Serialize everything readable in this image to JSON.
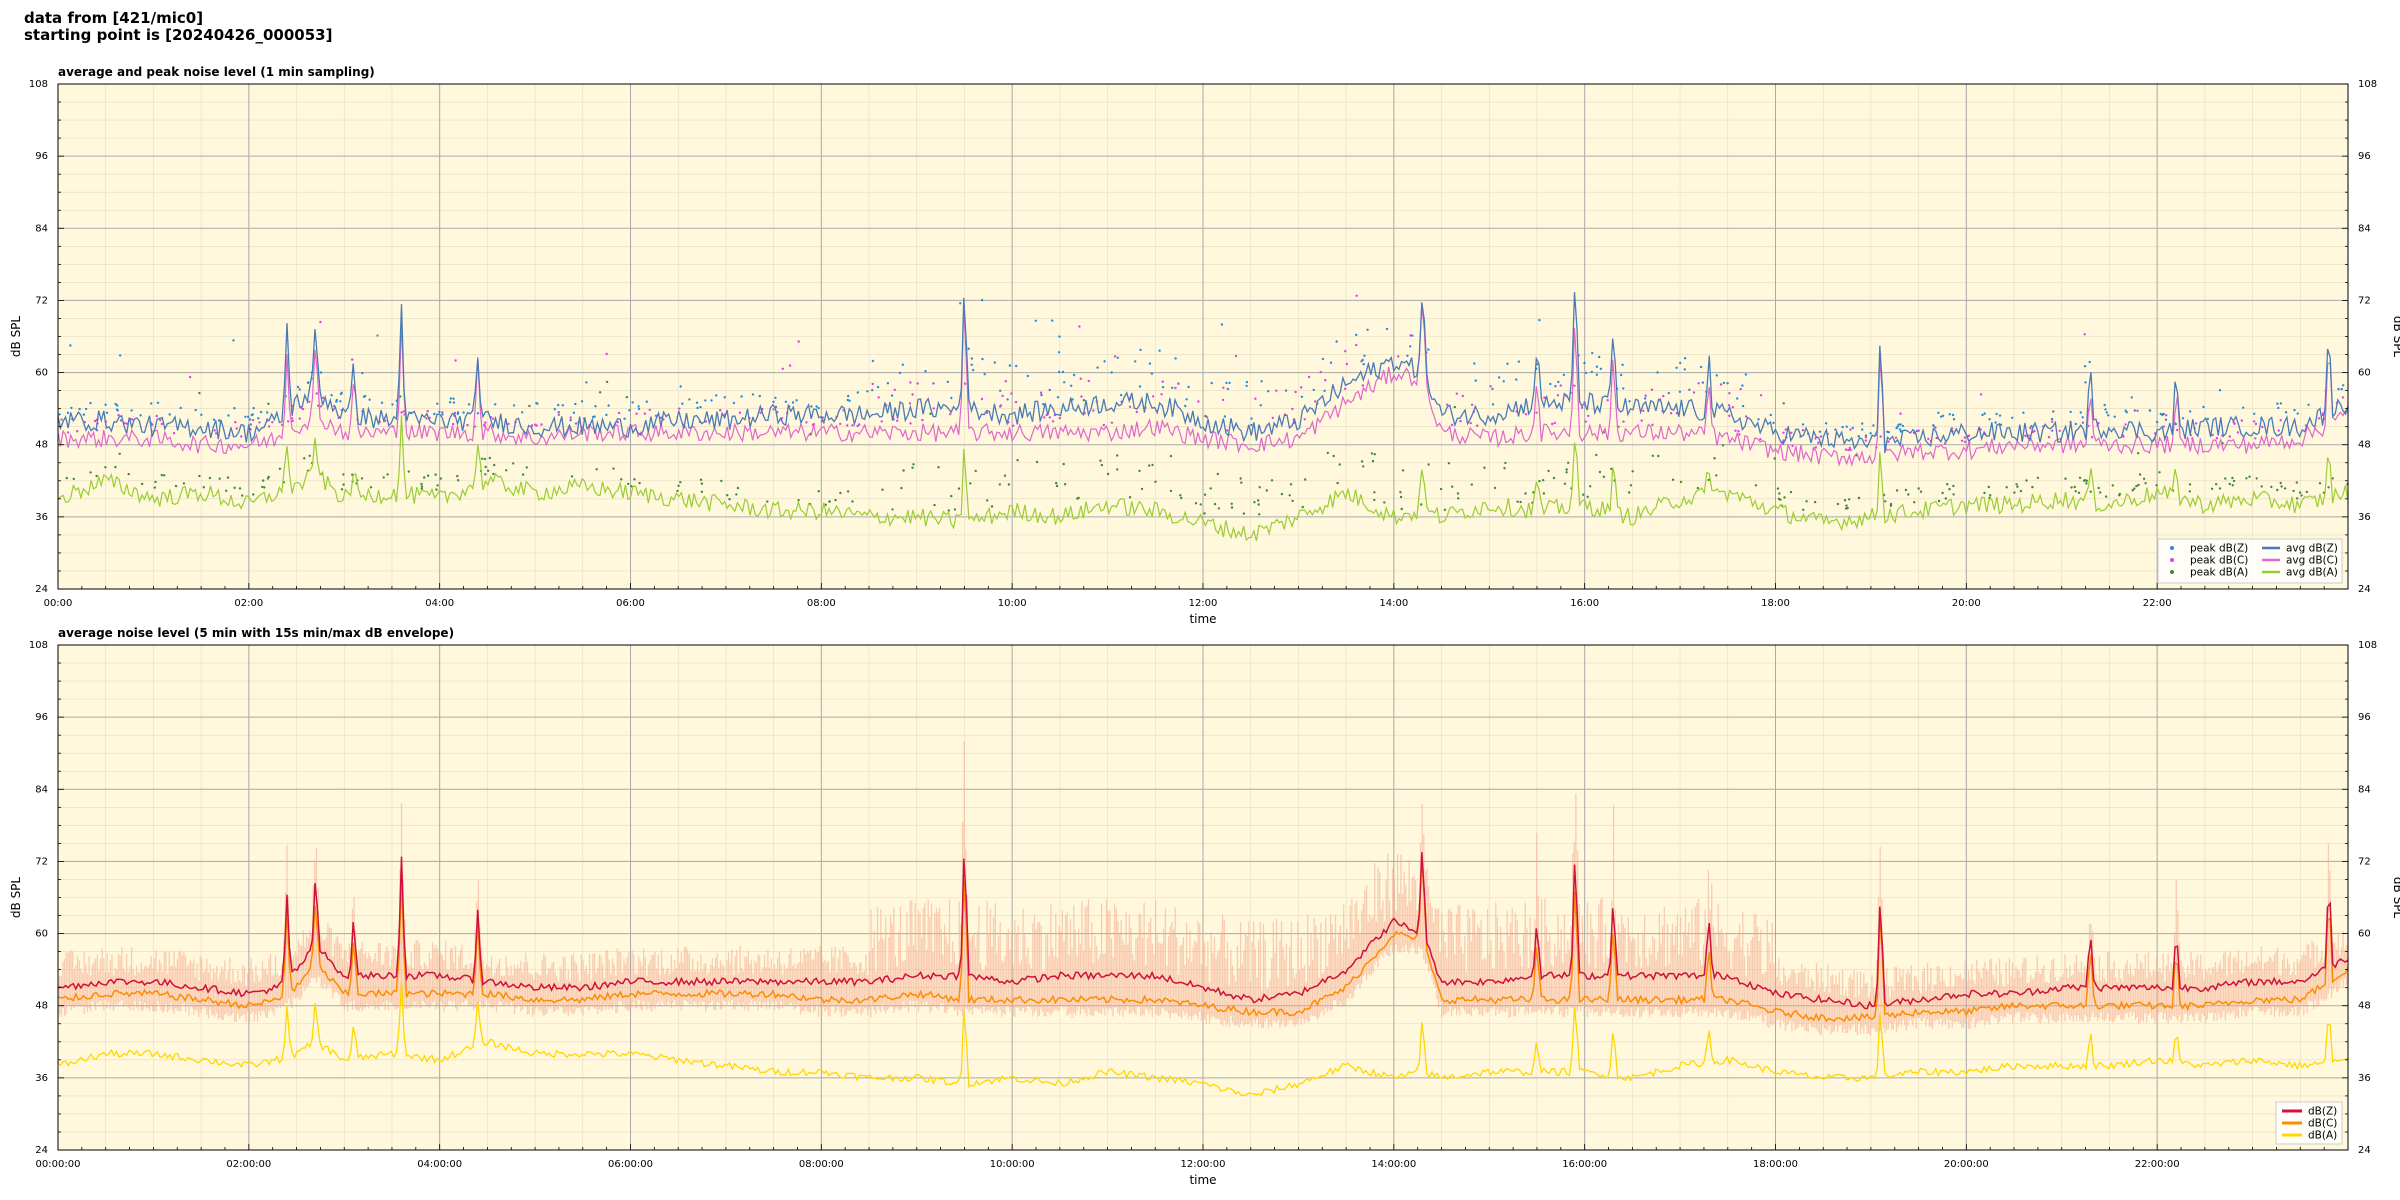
{
  "header": {
    "line1": "data from [421/mic0]",
    "line2": "starting point is [20240426_000053]"
  },
  "colors": {
    "plot_bg": "#fff8dc",
    "peak_z": "#1f8fdc",
    "peak_c": "#e040e0",
    "peak_a": "#3a8a3a",
    "avg_z": "#4a7ab5",
    "avg_c": "#e066cc",
    "avg_a": "#9acd32",
    "db_z": "#d0103a",
    "db_c": "#ff8c00",
    "db_a": "#ffd700",
    "envelope": "#f4a890"
  },
  "chart_data": [
    {
      "type": "line",
      "title": "average and peak noise level (1 min sampling)",
      "xlabel": "time",
      "ylabel": "dB SPL",
      "xlim": [
        0,
        24
      ],
      "ylim": [
        24,
        108
      ],
      "grid": true,
      "legend": "bottom-right",
      "xticks": [
        "00:00",
        "02:00",
        "04:00",
        "06:00",
        "08:00",
        "10:00",
        "12:00",
        "14:00",
        "16:00",
        "18:00",
        "20:00",
        "22:00"
      ],
      "yticks": [
        "24",
        "36",
        "48",
        "60",
        "72",
        "84",
        "96",
        "108"
      ],
      "legend_entries": [
        "peak dB(Z)",
        "peak dB(C)",
        "peak dB(A)",
        "avg dB(Z)",
        "avg dB(C)",
        "avg dB(A)"
      ],
      "series": [
        {
          "name": "avg dB(Z)",
          "x": [
            0,
            0.5,
            1,
            1.5,
            2,
            2.3,
            2.5,
            2.7,
            3,
            3.5,
            4,
            4.5,
            5,
            5.5,
            6,
            6.5,
            7,
            7.5,
            8,
            8.5,
            9,
            9.5,
            10,
            10.5,
            11,
            11.5,
            12,
            12.5,
            13,
            13.5,
            14,
            14.3,
            14.5,
            15,
            15.5,
            16,
            16.5,
            17,
            17.5,
            18,
            18.5,
            19,
            19.5,
            20,
            20.5,
            21,
            21.5,
            22,
            22.5,
            23,
            23.5,
            24
          ],
          "y": [
            52,
            52,
            51,
            51,
            50,
            52,
            55,
            57,
            53,
            52,
            52,
            52,
            51,
            51,
            51,
            52,
            52,
            53,
            53,
            53,
            54,
            54,
            53,
            54,
            55,
            55,
            52,
            50,
            52,
            58,
            62,
            60,
            53,
            53,
            55,
            55,
            54,
            54,
            53,
            50,
            49,
            48,
            49,
            50,
            50,
            50,
            51,
            50,
            51,
            51,
            51,
            55
          ]
        },
        {
          "name": "avg dB(C)",
          "x": [
            0,
            0.5,
            1,
            1.5,
            2,
            2.3,
            2.5,
            2.7,
            3,
            3.5,
            4,
            4.5,
            5,
            5.5,
            6,
            6.5,
            7,
            7.5,
            8,
            8.5,
            9,
            9.5,
            10,
            10.5,
            11,
            11.5,
            12,
            12.5,
            13,
            13.5,
            14,
            14.3,
            14.5,
            15,
            15.5,
            16,
            16.5,
            17,
            17.5,
            18,
            18.5,
            19,
            19.5,
            20,
            20.5,
            21,
            21.5,
            22,
            22.5,
            23,
            23.5,
            24
          ],
          "y": [
            49,
            49,
            49,
            48,
            48,
            49,
            51,
            53,
            50,
            50,
            50,
            50,
            49,
            50,
            50,
            50,
            50,
            50,
            50,
            50,
            50,
            50,
            50,
            50,
            50,
            51,
            49,
            48,
            49,
            55,
            60,
            59,
            50,
            49,
            50,
            50,
            50,
            50,
            49,
            47,
            46,
            46,
            47,
            47,
            48,
            48,
            48,
            48,
            48,
            48,
            49,
            53
          ]
        },
        {
          "name": "avg dB(A)",
          "x": [
            0,
            0.5,
            1,
            1.5,
            2,
            2.3,
            2.5,
            2.7,
            3,
            3.5,
            4,
            4.5,
            5,
            5.5,
            6,
            6.5,
            7,
            7.5,
            8,
            8.5,
            9,
            9.5,
            10,
            10.5,
            11,
            11.5,
            12,
            12.5,
            13,
            13.5,
            14,
            14.3,
            14.5,
            15,
            15.5,
            16,
            16.5,
            17,
            17.5,
            18,
            18.5,
            19,
            19.5,
            20,
            20.5,
            21,
            21.5,
            22,
            22.5,
            23,
            23.5,
            24
          ],
          "y": [
            39,
            42,
            39,
            40,
            38,
            40,
            41,
            43,
            39,
            40,
            39,
            42,
            40,
            41,
            40,
            39,
            38,
            37,
            37,
            36,
            36,
            35,
            37,
            36,
            38,
            37,
            35,
            33,
            36,
            40,
            36,
            37,
            36,
            38,
            37,
            38,
            36,
            39,
            40,
            37,
            35,
            36,
            37,
            38,
            38,
            39,
            38,
            40,
            38,
            39,
            38,
            40
          ]
        },
        {
          "name": "peak dB(Z)",
          "x": [],
          "y": []
        },
        {
          "name": "peak dB(C)",
          "x": [],
          "y": []
        },
        {
          "name": "peak dB(A)",
          "x": [],
          "y": []
        }
      ]
    },
    {
      "type": "line",
      "title": "average noise level (5 min with 15s min/max dB envelope)",
      "xlabel": "time",
      "ylabel": "dB SPL",
      "xlim": [
        0,
        24
      ],
      "ylim": [
        24,
        108
      ],
      "grid": true,
      "legend": "bottom-right",
      "xticks": [
        "00:00:00",
        "02:00:00",
        "04:00:00",
        "06:00:00",
        "08:00:00",
        "10:00:00",
        "12:00:00",
        "14:00:00",
        "16:00:00",
        "18:00:00",
        "20:00:00",
        "22:00:00"
      ],
      "yticks": [
        "24",
        "36",
        "48",
        "60",
        "72",
        "84",
        "96",
        "108"
      ],
      "legend_entries": [
        "dB(Z)",
        "dB(C)",
        "dB(A)"
      ],
      "series": [
        {
          "name": "dB(Z)",
          "x": [
            0,
            0.5,
            1,
            1.5,
            2,
            2.3,
            2.5,
            2.7,
            3,
            3.5,
            4,
            4.5,
            5,
            5.5,
            6,
            6.5,
            7,
            7.5,
            8,
            8.5,
            9,
            9.5,
            10,
            10.5,
            11,
            11.5,
            12,
            12.5,
            13,
            13.5,
            14,
            14.3,
            14.5,
            15,
            15.5,
            16,
            16.5,
            17,
            17.5,
            18,
            18.5,
            19,
            19.5,
            20,
            20.5,
            21,
            21.5,
            22,
            22.5,
            23,
            23.5,
            24
          ],
          "y": [
            51,
            52,
            52,
            51,
            50,
            51,
            54,
            58,
            53,
            53,
            53,
            52,
            51,
            51,
            52,
            52,
            52,
            52,
            52,
            52,
            53,
            53,
            52,
            53,
            53,
            53,
            51,
            49,
            50,
            54,
            62,
            60,
            52,
            52,
            53,
            53,
            53,
            53,
            53,
            50,
            49,
            48,
            49,
            50,
            50,
            51,
            51,
            51,
            51,
            52,
            52,
            56
          ]
        },
        {
          "name": "dB(C)",
          "x": [
            0,
            0.5,
            1,
            1.5,
            2,
            2.3,
            2.5,
            2.7,
            3,
            3.5,
            4,
            4.5,
            5,
            5.5,
            6,
            6.5,
            7,
            7.5,
            8,
            8.5,
            9,
            9.5,
            10,
            10.5,
            11,
            11.5,
            12,
            12.5,
            13,
            13.5,
            14,
            14.3,
            14.5,
            15,
            15.5,
            16,
            16.5,
            17,
            17.5,
            18,
            18.5,
            19,
            19.5,
            20,
            20.5,
            21,
            21.5,
            22,
            22.5,
            23,
            23.5,
            24
          ],
          "y": [
            49,
            50,
            50,
            49,
            48,
            49,
            51,
            55,
            50,
            50,
            50,
            50,
            49,
            49,
            50,
            50,
            50,
            50,
            49,
            49,
            50,
            49,
            49,
            49,
            49,
            49,
            48,
            47,
            47,
            51,
            60,
            59,
            49,
            49,
            49,
            49,
            49,
            49,
            49,
            47,
            46,
            46,
            47,
            47,
            48,
            48,
            48,
            48,
            48,
            49,
            49,
            54
          ]
        },
        {
          "name": "dB(A)",
          "x": [
            0,
            0.5,
            1,
            1.5,
            2,
            2.3,
            2.5,
            2.7,
            3,
            3.5,
            4,
            4.5,
            5,
            5.5,
            6,
            6.5,
            7,
            7.5,
            8,
            8.5,
            9,
            9.5,
            10,
            10.5,
            11,
            11.5,
            12,
            12.5,
            13,
            13.5,
            14,
            14.3,
            14.5,
            15,
            15.5,
            16,
            16.5,
            17,
            17.5,
            18,
            18.5,
            19,
            19.5,
            20,
            20.5,
            21,
            21.5,
            22,
            22.5,
            23,
            23.5,
            24
          ],
          "y": [
            38,
            40,
            40,
            39,
            38,
            39,
            40,
            42,
            39,
            40,
            39,
            42,
            40,
            40,
            40,
            39,
            38,
            37,
            37,
            36,
            36,
            35,
            36,
            35,
            37,
            36,
            35,
            33,
            35,
            38,
            36,
            37,
            36,
            37,
            37,
            37,
            36,
            38,
            39,
            37,
            36,
            36,
            37,
            37,
            38,
            38,
            38,
            39,
            38,
            39,
            38,
            39
          ]
        }
      ]
    }
  ]
}
